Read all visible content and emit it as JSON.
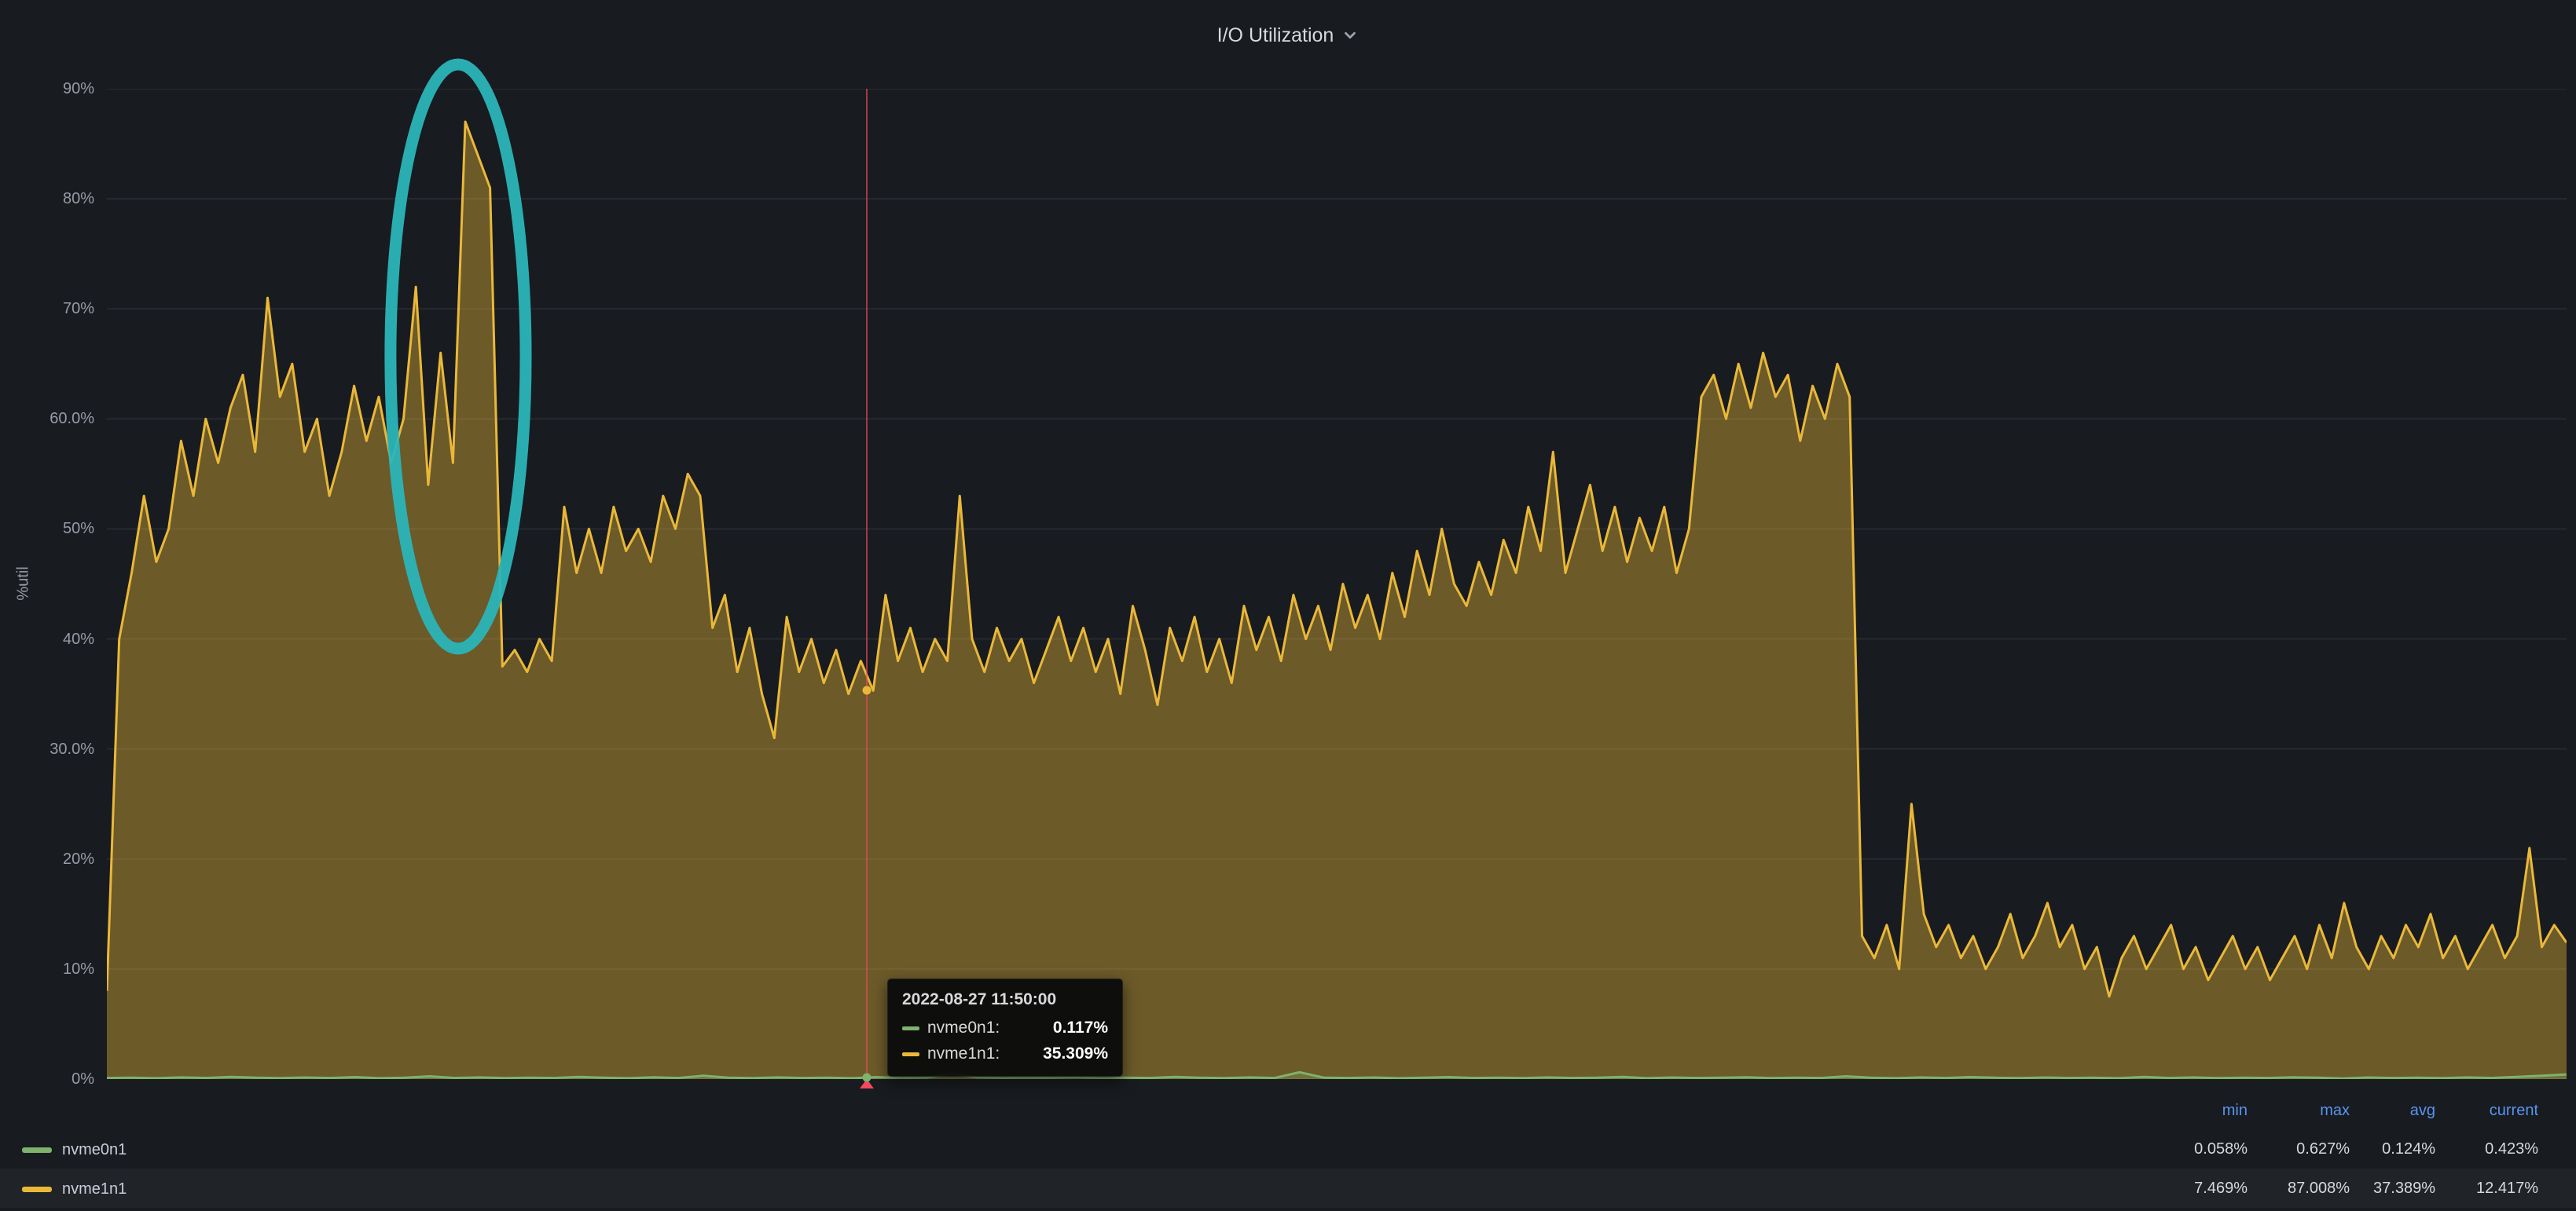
{
  "icons": {
    "panel_chevron": "chevron-down"
  },
  "chart_data": {
    "type": "area",
    "title": "I/O Utilization",
    "ylabel": "%util",
    "ylim": [
      0,
      90
    ],
    "ytick_labels": [
      "0%",
      "10%",
      "20%",
      "30.0%",
      "40%",
      "50%",
      "60.0%",
      "70%",
      "80%",
      "90%"
    ],
    "grid": true,
    "series": [
      {
        "name": "nvme0n1",
        "color": "#7EB26D",
        "fill_opacity": 0.25,
        "values": [
          0.1,
          0.12,
          0.08,
          0.15,
          0.1,
          0.2,
          0.12,
          0.09,
          0.14,
          0.1,
          0.18,
          0.08,
          0.12,
          0.25,
          0.1,
          0.15,
          0.09,
          0.13,
          0.1,
          0.2,
          0.12,
          0.08,
          0.16,
          0.1,
          0.3,
          0.12,
          0.09,
          0.15,
          0.1,
          0.13,
          0.08,
          0.18,
          0.1,
          0.12,
          0.5,
          0.15,
          0.09,
          0.12,
          0.1,
          0.16,
          0.08,
          0.13,
          0.1,
          0.2,
          0.12,
          0.09,
          0.15,
          0.1,
          0.62,
          0.12,
          0.1,
          0.14,
          0.08,
          0.12,
          0.18,
          0.1,
          0.13,
          0.09,
          0.15,
          0.1,
          0.12,
          0.2,
          0.08,
          0.14,
          0.1,
          0.12,
          0.16,
          0.09,
          0.13,
          0.1,
          0.25,
          0.12,
          0.08,
          0.15,
          0.1,
          0.18,
          0.12,
          0.09,
          0.14,
          0.1,
          0.12,
          0.08,
          0.2,
          0.1,
          0.15,
          0.09,
          0.13,
          0.1,
          0.16,
          0.12,
          0.06,
          0.14,
          0.1,
          0.12,
          0.09,
          0.15,
          0.1,
          0.2,
          0.3,
          0.42
        ]
      },
      {
        "name": "nvme1n1",
        "color": "#EAB839",
        "fill_opacity": 0.4,
        "values": [
          8,
          40,
          46,
          53,
          47,
          50,
          58,
          53,
          60,
          56,
          61,
          64,
          57,
          71,
          62,
          65,
          57,
          60,
          53,
          57,
          63,
          58,
          62,
          56,
          60,
          72,
          54,
          66,
          56,
          87,
          84,
          81,
          37.5,
          39,
          37,
          40,
          38,
          52,
          46,
          50,
          46,
          52,
          48,
          50,
          47,
          53,
          50,
          55,
          53,
          41,
          44,
          37,
          41,
          35,
          31,
          42,
          37,
          40,
          36,
          39,
          35,
          38,
          35.3,
          44,
          38,
          41,
          37,
          40,
          38,
          53,
          40,
          37,
          41,
          38,
          40,
          36,
          39,
          42,
          38,
          41,
          37,
          40,
          35,
          43,
          39,
          34,
          41,
          38,
          42,
          37,
          40,
          36,
          43,
          39,
          42,
          38,
          44,
          40,
          43,
          39,
          45,
          41,
          44,
          40,
          46,
          42,
          48,
          44,
          50,
          45,
          43,
          47,
          44,
          49,
          46,
          52,
          48,
          57,
          46,
          50,
          54,
          48,
          52,
          47,
          51,
          48,
          52,
          46,
          50,
          62,
          64,
          60,
          65,
          61,
          66,
          62,
          64,
          58,
          63,
          60,
          65,
          62,
          13,
          11,
          14,
          10,
          25,
          15,
          12,
          14,
          11,
          13,
          10,
          12,
          15,
          11,
          13,
          16,
          12,
          14,
          10,
          12,
          7.5,
          11,
          13,
          10,
          12,
          14,
          10,
          12,
          9,
          11,
          13,
          10,
          12,
          9,
          11,
          13,
          10,
          14,
          11,
          16,
          12,
          10,
          13,
          11,
          14,
          12,
          15,
          11,
          13,
          10,
          12,
          14,
          11,
          13,
          21,
          12,
          14,
          12.4
        ]
      }
    ],
    "annotation": {
      "x_fraction": 0.309,
      "color": "#F2495C"
    },
    "highlight_ellipse": {
      "cx_fraction": 0.1428,
      "cy_fraction": 0.2704,
      "rx_fraction": 0.0275,
      "ry_fraction": 0.295,
      "color": "#2BB5B8"
    },
    "tooltip": {
      "time": "2022-08-27 11:50:00",
      "rows": [
        {
          "name": "nvme0n1:",
          "value": "0.117%"
        },
        {
          "name": "nvme1n1:",
          "value": "35.309%"
        }
      ]
    },
    "legend": {
      "position": "bottom",
      "header_color": "#5794F2",
      "columns": [
        "min",
        "max",
        "avg",
        "current"
      ],
      "stats": [
        {
          "name": "nvme0n1",
          "min": "0.058%",
          "max": "0.627%",
          "avg": "0.124%",
          "current": "0.423%"
        },
        {
          "name": "nvme1n1",
          "min": "7.469%",
          "max": "87.008%",
          "avg": "37.389%",
          "current": "12.417%"
        }
      ]
    }
  }
}
